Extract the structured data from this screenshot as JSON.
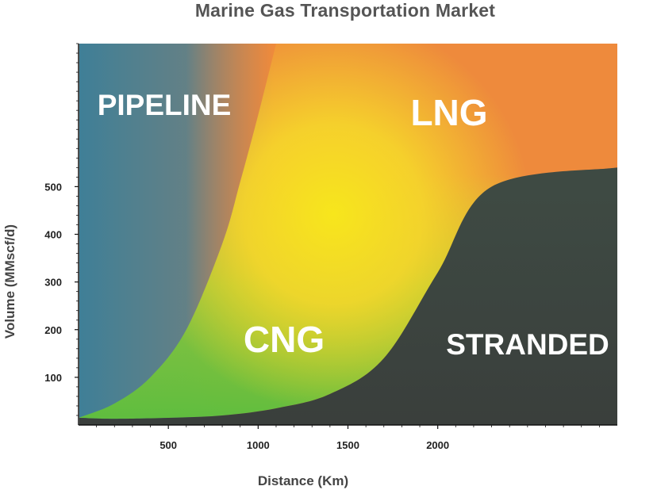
{
  "chart_data": {
    "type": "area",
    "title": "Marine Gas Transportation Market",
    "xlabel": "Distance (Km)",
    "ylabel": "Volume (MMscf/d)",
    "x_ticks": [
      500,
      1000,
      1500,
      2000
    ],
    "y_ticks": [
      100,
      200,
      300,
      400,
      500
    ],
    "xlim": [
      0,
      3000
    ],
    "ylim": [
      0,
      800
    ],
    "regions": [
      {
        "name": "PIPELINE",
        "color": "#3f7f97"
      },
      {
        "name": "LNG",
        "color": "#ee8a3c"
      },
      {
        "name": "CNG",
        "color": "#6cc13d"
      },
      {
        "name": "STRANDED",
        "color": "#3c403d"
      }
    ],
    "boundaries": {
      "pipeline_upper": {
        "x": [
          0,
          200,
          400,
          600,
          800,
          900,
          1000,
          1100
        ],
        "y": [
          15,
          45,
          100,
          200,
          380,
          510,
          650,
          800
        ]
      },
      "cng_lower": {
        "x": [
          0,
          200,
          500,
          800,
          1100,
          1400,
          1700,
          2000,
          2300,
          3000
        ],
        "y": [
          15,
          13,
          15,
          20,
          35,
          65,
          140,
          320,
          500,
          540
        ]
      }
    }
  }
}
